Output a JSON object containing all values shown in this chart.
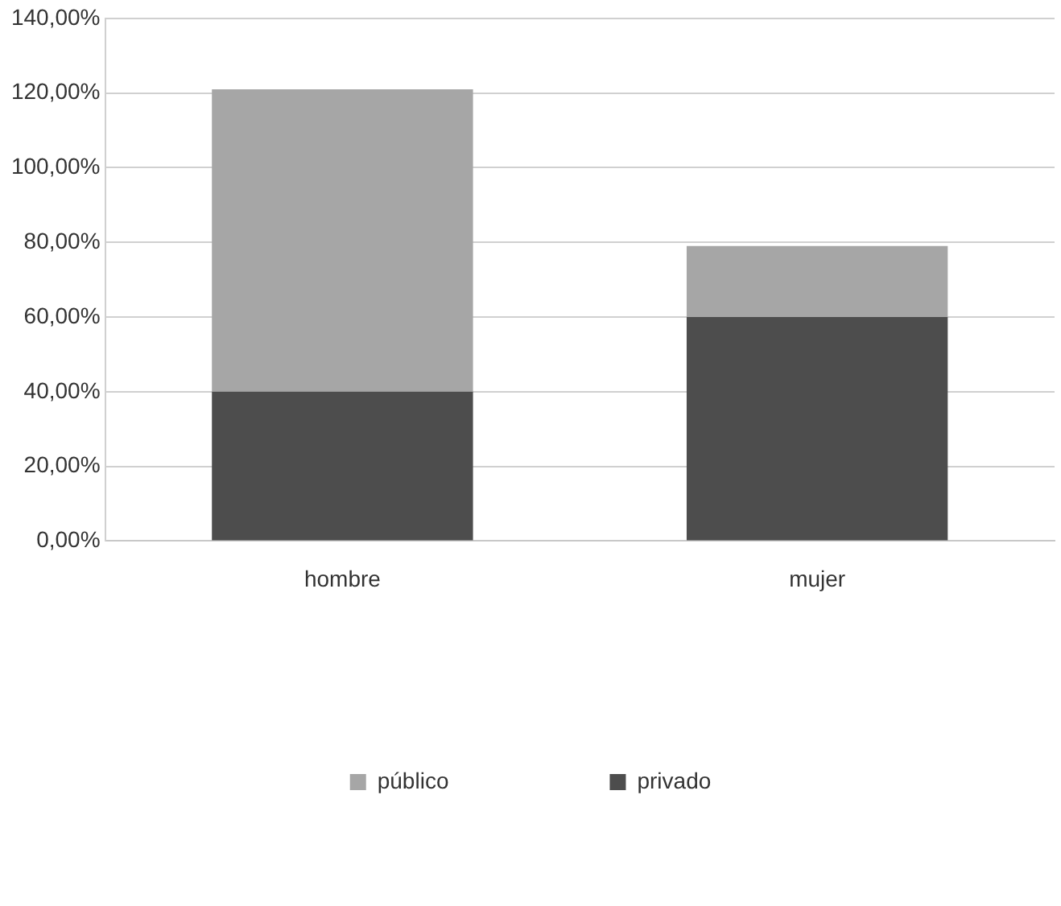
{
  "chart_data": {
    "type": "bar",
    "stacked": true,
    "categories": [
      "hombre",
      "mujer"
    ],
    "series": [
      {
        "name": "privado",
        "color": "#4d4d4d",
        "values": [
          40,
          60
        ]
      },
      {
        "name": "público",
        "color": "#a6a6a6",
        "values": [
          81,
          19
        ]
      }
    ],
    "ylim": [
      0,
      140
    ],
    "yticks": [
      {
        "value": 0,
        "label": "0,00%"
      },
      {
        "value": 20,
        "label": "20,00%"
      },
      {
        "value": 40,
        "label": "40,00%"
      },
      {
        "value": 60,
        "label": "60,00%"
      },
      {
        "value": 80,
        "label": "80,00%"
      },
      {
        "value": 100,
        "label": "100,00%"
      },
      {
        "value": 120,
        "label": "120,00%"
      },
      {
        "value": 140,
        "label": "140,00%"
      }
    ],
    "grid": "y",
    "legend": "bottom"
  }
}
